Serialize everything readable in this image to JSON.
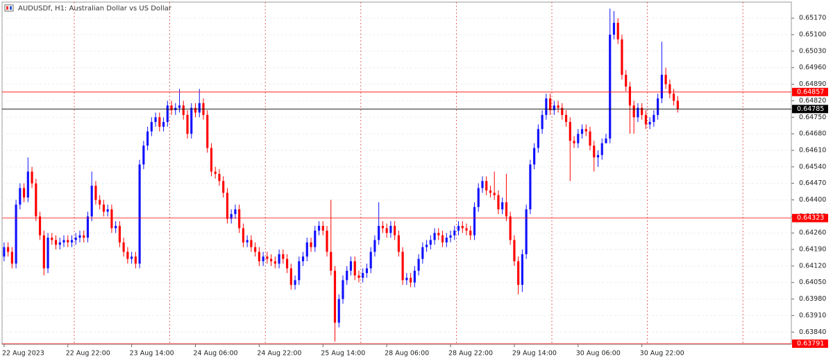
{
  "chart_data": {
    "type": "candlestick",
    "title": "AUDUSDf, H1:  Australian Dollar vs US Dollar",
    "up_color": "#1010ff",
    "down_color": "#ff0000",
    "ylim": [
      0.63788,
      0.65238
    ],
    "xlim": [
      -0.5,
      197.5
    ],
    "yticks": [
      {
        "value": 0.6517,
        "label": "0.65170"
      },
      {
        "value": 0.651,
        "label": "0.65100"
      },
      {
        "value": 0.6503,
        "label": "0.65030"
      },
      {
        "value": 0.6496,
        "label": "0.64960"
      },
      {
        "value": 0.6489,
        "label": "0.64890"
      },
      {
        "value": 0.6482,
        "label": "0.64820"
      },
      {
        "value": 0.6475,
        "label": "0.64750"
      },
      {
        "value": 0.6468,
        "label": "0.64680"
      },
      {
        "value": 0.6461,
        "label": "0.64610"
      },
      {
        "value": 0.6454,
        "label": "0.64540"
      },
      {
        "value": 0.6447,
        "label": "0.64470"
      },
      {
        "value": 0.644,
        "label": "0.64400"
      },
      {
        "value": 0.6433,
        "label": "0.64330"
      },
      {
        "value": 0.6426,
        "label": "0.64260"
      },
      {
        "value": 0.6419,
        "label": "0.64190"
      },
      {
        "value": 0.6412,
        "label": "0.64120"
      },
      {
        "value": 0.6405,
        "label": "0.64050"
      },
      {
        "value": 0.6398,
        "label": "0.63980"
      },
      {
        "value": 0.6391,
        "label": "0.63910"
      },
      {
        "value": 0.6384,
        "label": "0.63840"
      }
    ],
    "xticks": [
      {
        "value": 0,
        "label": "22 Aug 2023"
      },
      {
        "value": 16,
        "label": "22 Aug 22:00"
      },
      {
        "value": 32,
        "label": "23 Aug 14:00"
      },
      {
        "value": 48,
        "label": "24 Aug 06:00"
      },
      {
        "value": 64,
        "label": "24 Aug 22:00"
      },
      {
        "value": 80,
        "label": "25 Aug 14:00"
      },
      {
        "value": 96,
        "label": "28 Aug 06:00"
      },
      {
        "value": 112,
        "label": "28 Aug 22:00"
      },
      {
        "value": 128,
        "label": "29 Aug 14:00"
      },
      {
        "value": 144,
        "label": "30 Aug 06:00"
      },
      {
        "value": 160,
        "label": "30 Aug 22:00"
      }
    ],
    "price_lines": [
      {
        "value": 0.64857,
        "color": "#ff0000"
      },
      {
        "value": 0.64785,
        "color": "#000000"
      },
      {
        "value": 0.64323,
        "color": "#ff0000"
      },
      {
        "value": 0.63791,
        "color": "#ff0000"
      }
    ],
    "open": [
      0.6416,
      0.642,
      0.6418,
      0.6413,
      0.6438,
      0.6445,
      0.6441,
      0.6452,
      0.6447,
      0.6433,
      0.6425,
      0.6411,
      0.6424,
      0.6423,
      0.6421,
      0.6422,
      0.6423,
      0.6422,
      0.6423,
      0.6424,
      0.6425,
      0.6424,
      0.6433,
      0.6446,
      0.644,
      0.6438,
      0.6435,
      0.6436,
      0.6428,
      0.6429,
      0.6422,
      0.6418,
      0.6415,
      0.6416,
      0.6413,
      0.6455,
      0.6463,
      0.6469,
      0.6473,
      0.6475,
      0.6471,
      0.6473,
      0.648,
      0.6478,
      0.6479,
      0.648,
      0.6476,
      0.6468,
      0.6479,
      0.6477,
      0.6481,
      0.6476,
      0.6462,
      0.6452,
      0.6451,
      0.6448,
      0.6443,
      0.6432,
      0.6434,
      0.6436,
      0.6428,
      0.6422,
      0.6423,
      0.642,
      0.6418,
      0.6414,
      0.6416,
      0.6415,
      0.6414,
      0.6413,
      0.6417,
      0.6415,
      0.6411,
      0.6404,
      0.6406,
      0.6414,
      0.6416,
      0.6422,
      0.642,
      0.6427,
      0.6429,
      0.6427,
      0.6418,
      0.641,
      0.6388,
      0.6398,
      0.6406,
      0.641,
      0.6414,
      0.6408,
      0.6407,
      0.6409,
      0.6411,
      0.6418,
      0.6423,
      0.6429,
      0.6428,
      0.6426,
      0.6429,
      0.6425,
      0.6418,
      0.6406,
      0.6407,
      0.6405,
      0.641,
      0.6415,
      0.642,
      0.6421,
      0.6423,
      0.6426,
      0.6425,
      0.6422,
      0.6424,
      0.6425,
      0.6427,
      0.6429,
      0.6428,
      0.6427,
      0.6425,
      0.6437,
      0.6445,
      0.6448,
      0.6444,
      0.6443,
      0.6442,
      0.6436,
      0.6439,
      0.6433,
      0.6423,
      0.6414,
      0.6404,
      0.6417,
      0.6436,
      0.6455,
      0.6462,
      0.647,
      0.6476,
      0.6483,
      0.6478,
      0.648,
      0.6479,
      0.6476,
      0.6473,
      0.6465,
      0.6464,
      0.6468,
      0.647,
      0.6469,
      0.6463,
      0.6458,
      0.6459,
      0.6464,
      0.6466,
      0.651,
      0.6515,
      0.6508,
      0.6493,
      0.6488,
      0.648,
      0.6475,
      0.6479,
      0.6476,
      0.6472,
      0.6473,
      0.6476,
      0.6483,
      0.6493,
      0.6489,
      0.6485,
      0.6482
    ],
    "high": [
      0.6422,
      0.6422,
      0.642,
      0.644,
      0.6447,
      0.6447,
      0.6458,
      0.6454,
      0.6449,
      0.6435,
      0.6427,
      0.6426,
      0.6426,
      0.6425,
      0.6424,
      0.6425,
      0.6425,
      0.6425,
      0.6426,
      0.6427,
      0.6427,
      0.6435,
      0.6452,
      0.6448,
      0.6442,
      0.644,
      0.6438,
      0.6438,
      0.6431,
      0.6431,
      0.6424,
      0.642,
      0.6418,
      0.6418,
      0.6457,
      0.6465,
      0.6471,
      0.6475,
      0.6477,
      0.6477,
      0.6475,
      0.6482,
      0.6482,
      0.6481,
      0.6487,
      0.6482,
      0.6478,
      0.6481,
      0.6481,
      0.6487,
      0.6483,
      0.6478,
      0.6464,
      0.6454,
      0.6453,
      0.645,
      0.6445,
      0.6436,
      0.6438,
      0.6438,
      0.643,
      0.6425,
      0.6425,
      0.6422,
      0.642,
      0.6418,
      0.6418,
      0.6417,
      0.6416,
      0.6419,
      0.6419,
      0.6417,
      0.6413,
      0.6408,
      0.6416,
      0.6418,
      0.6424,
      0.6424,
      0.6429,
      0.6431,
      0.6431,
      0.6429,
      0.644,
      0.6412,
      0.64,
      0.6408,
      0.6412,
      0.6416,
      0.6416,
      0.641,
      0.6411,
      0.6413,
      0.642,
      0.6425,
      0.6439,
      0.6431,
      0.643,
      0.6431,
      0.6431,
      0.6427,
      0.642,
      0.6409,
      0.6409,
      0.6412,
      0.6417,
      0.6422,
      0.6423,
      0.6425,
      0.6428,
      0.6428,
      0.6427,
      0.6426,
      0.6427,
      0.6429,
      0.6431,
      0.6431,
      0.643,
      0.6429,
      0.6439,
      0.6447,
      0.645,
      0.645,
      0.6446,
      0.6452,
      0.6444,
      0.6441,
      0.6451,
      0.6435,
      0.6425,
      0.6416,
      0.6419,
      0.6438,
      0.6457,
      0.6464,
      0.6472,
      0.6478,
      0.6485,
      0.6485,
      0.6482,
      0.6482,
      0.6481,
      0.6478,
      0.6475,
      0.6467,
      0.647,
      0.6472,
      0.6472,
      0.6471,
      0.6465,
      0.6461,
      0.6466,
      0.6468,
      0.6521,
      0.652,
      0.6517,
      0.651,
      0.6495,
      0.649,
      0.6482,
      0.6481,
      0.6481,
      0.6478,
      0.6475,
      0.6478,
      0.6485,
      0.6507,
      0.6496,
      0.6491,
      0.6487,
      0.6484
    ],
    "low": [
      0.6414,
      0.6416,
      0.6411,
      0.6411,
      0.6436,
      0.6439,
      0.6439,
      0.6445,
      0.6431,
      0.6423,
      0.6408,
      0.6409,
      0.6421,
      0.6419,
      0.6419,
      0.642,
      0.642,
      0.642,
      0.6421,
      0.6422,
      0.6422,
      0.6422,
      0.6431,
      0.6438,
      0.6436,
      0.6433,
      0.6433,
      0.6426,
      0.6426,
      0.642,
      0.6416,
      0.6413,
      0.6413,
      0.6411,
      0.6411,
      0.6453,
      0.6461,
      0.6467,
      0.6471,
      0.6469,
      0.6469,
      0.6471,
      0.6476,
      0.6476,
      0.6477,
      0.6474,
      0.6466,
      0.6466,
      0.6475,
      0.6475,
      0.6474,
      0.646,
      0.645,
      0.6449,
      0.6446,
      0.6441,
      0.643,
      0.643,
      0.6432,
      0.6426,
      0.642,
      0.642,
      0.6418,
      0.6416,
      0.6412,
      0.6412,
      0.6413,
      0.6412,
      0.6411,
      0.6411,
      0.6413,
      0.6409,
      0.6402,
      0.6402,
      0.6404,
      0.6412,
      0.6414,
      0.6418,
      0.6418,
      0.6425,
      0.6425,
      0.6416,
      0.6408,
      0.638,
      0.6386,
      0.6396,
      0.6404,
      0.6408,
      0.6406,
      0.6405,
      0.6405,
      0.6407,
      0.6409,
      0.6416,
      0.6421,
      0.6426,
      0.6424,
      0.6424,
      0.6423,
      0.6416,
      0.6404,
      0.6404,
      0.6403,
      0.6403,
      0.6408,
      0.6413,
      0.6418,
      0.6419,
      0.6421,
      0.6423,
      0.642,
      0.642,
      0.6422,
      0.6423,
      0.6425,
      0.6426,
      0.6425,
      0.6423,
      0.6423,
      0.6435,
      0.6443,
      0.6442,
      0.6441,
      0.644,
      0.6434,
      0.6434,
      0.6431,
      0.6421,
      0.6412,
      0.64,
      0.6401,
      0.6415,
      0.6434,
      0.6453,
      0.646,
      0.6468,
      0.6474,
      0.6476,
      0.6476,
      0.6477,
      0.6474,
      0.6471,
      0.6448,
      0.6462,
      0.6462,
      0.6466,
      0.6467,
      0.6461,
      0.6452,
      0.6454,
      0.6457,
      0.6464,
      0.6464,
      0.6508,
      0.6506,
      0.6491,
      0.6486,
      0.6468,
      0.6468,
      0.6473,
      0.6474,
      0.647,
      0.647,
      0.6471,
      0.6474,
      0.6481,
      0.6487,
      0.6483,
      0.648,
      0.6477
    ],
    "close": [
      0.642,
      0.6418,
      0.6413,
      0.6438,
      0.6445,
      0.6441,
      0.6452,
      0.6447,
      0.6433,
      0.6425,
      0.6411,
      0.6424,
      0.6423,
      0.6421,
      0.6422,
      0.6423,
      0.6422,
      0.6423,
      0.6424,
      0.6425,
      0.6424,
      0.6433,
      0.6446,
      0.644,
      0.6438,
      0.6435,
      0.6436,
      0.6428,
      0.6429,
      0.6422,
      0.6418,
      0.6415,
      0.6416,
      0.6413,
      0.6455,
      0.6463,
      0.6469,
      0.6473,
      0.6475,
      0.6471,
      0.6473,
      0.648,
      0.6478,
      0.6479,
      0.648,
      0.6476,
      0.6468,
      0.6479,
      0.6477,
      0.6481,
      0.6476,
      0.6462,
      0.6452,
      0.6451,
      0.6448,
      0.6443,
      0.6432,
      0.6434,
      0.6436,
      0.6428,
      0.6422,
      0.6423,
      0.642,
      0.6418,
      0.6414,
      0.6416,
      0.6415,
      0.6414,
      0.6413,
      0.6417,
      0.6415,
      0.6411,
      0.6404,
      0.6406,
      0.6414,
      0.6416,
      0.6422,
      0.642,
      0.6427,
      0.6429,
      0.6427,
      0.6418,
      0.641,
      0.6388,
      0.6398,
      0.6406,
      0.641,
      0.6414,
      0.6408,
      0.6407,
      0.6409,
      0.6411,
      0.6418,
      0.6423,
      0.6429,
      0.6428,
      0.6426,
      0.6429,
      0.6425,
      0.6418,
      0.6406,
      0.6407,
      0.6405,
      0.641,
      0.6415,
      0.642,
      0.6421,
      0.6423,
      0.6426,
      0.6425,
      0.6422,
      0.6424,
      0.6425,
      0.6427,
      0.6429,
      0.6428,
      0.6427,
      0.6425,
      0.6437,
      0.6445,
      0.6448,
      0.6444,
      0.6443,
      0.6442,
      0.6436,
      0.6439,
      0.6433,
      0.6423,
      0.6414,
      0.6404,
      0.6417,
      0.6436,
      0.6455,
      0.6462,
      0.647,
      0.6476,
      0.6483,
      0.6478,
      0.648,
      0.6479,
      0.6476,
      0.6473,
      0.6465,
      0.6464,
      0.6468,
      0.647,
      0.6469,
      0.6463,
      0.6458,
      0.6459,
      0.6464,
      0.6466,
      0.651,
      0.6515,
      0.6508,
      0.6493,
      0.6488,
      0.648,
      0.6475,
      0.6479,
      0.6476,
      0.6472,
      0.6473,
      0.6476,
      0.6483,
      0.6493,
      0.6489,
      0.6485,
      0.6482,
      0.64785
    ]
  }
}
